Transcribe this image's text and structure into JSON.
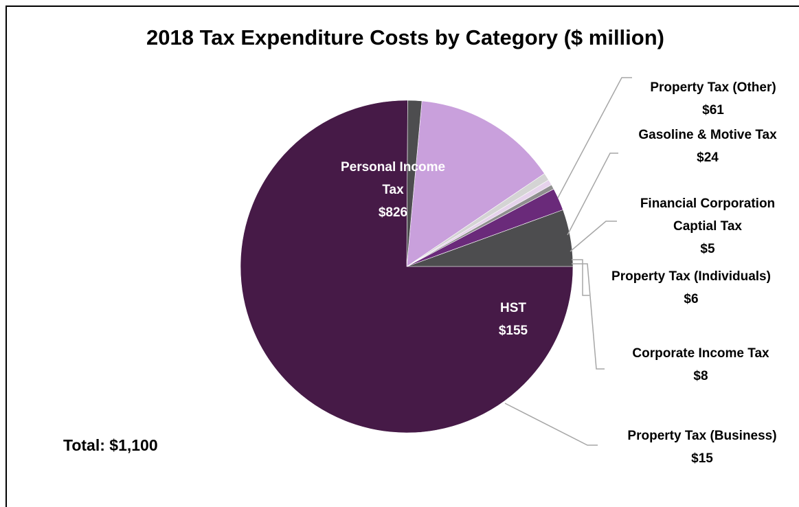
{
  "chart_data": {
    "type": "pie",
    "title": "2018 Tax Expenditure Costs by Category ($ million)",
    "total_label": "Total: $1,100",
    "slices": [
      {
        "label_lines": [
          "Property Tax (Other)"
        ],
        "value_label": "$61",
        "value": 61,
        "color": "#4d4d4f"
      },
      {
        "label_lines": [
          "Gasoline & Motive Tax"
        ],
        "value_label": "$24",
        "value": 24,
        "color": "#6a2a7a"
      },
      {
        "label_lines": [
          "Financial Corporation",
          "Captial Tax"
        ],
        "value_label": "$5",
        "value": 5,
        "color": "#8f8f8f"
      },
      {
        "label_lines": [
          "Property Tax (Individuals)"
        ],
        "value_label": "$6",
        "value": 6,
        "color": "#e6d3ec"
      },
      {
        "label_lines": [
          "Corporate Income Tax"
        ],
        "value_label": "$8",
        "value": 8,
        "color": "#d4d4d4"
      },
      {
        "label_lines": [
          "HST"
        ],
        "value_label": "$155",
        "value": 155,
        "color": "#c9a0dc"
      },
      {
        "label_lines": [
          "Property Tax (Business)"
        ],
        "value_label": "$15",
        "value": 15,
        "color": "#4d4d4f"
      },
      {
        "label_lines": [
          "Personal Income",
          "Tax"
        ],
        "value_label": "$826",
        "value": 826,
        "color": "#461a47"
      }
    ]
  }
}
